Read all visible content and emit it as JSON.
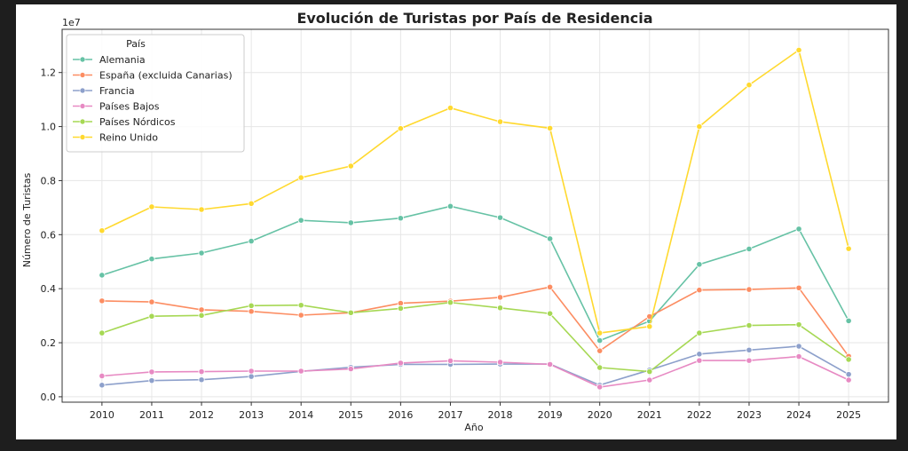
{
  "chart_data": {
    "type": "line",
    "title": "Evolución de Turistas por País de Residencia",
    "xlabel": "Año",
    "ylabel": "Número de Turistas",
    "y_offset_label": "1e7",
    "ylim": [
      -200000,
      13600000
    ],
    "yticks": [
      0,
      2000000,
      4000000,
      6000000,
      8000000,
      10000000,
      12000000
    ],
    "ytick_labels": [
      "0.0",
      "0.2",
      "0.4",
      "0.6",
      "0.8",
      "1.0",
      "1.2"
    ],
    "x": [
      2010,
      2011,
      2012,
      2013,
      2014,
      2015,
      2016,
      2017,
      2018,
      2019,
      2020,
      2021,
      2022,
      2023,
      2024,
      2025
    ],
    "xlim": [
      2009.2,
      2025.8
    ],
    "grid": true,
    "legend": {
      "title": "País",
      "placement": "top-left"
    },
    "series": [
      {
        "name": "Alemania",
        "color": "#66c2a5",
        "values": [
          4500000,
          5100000,
          5320000,
          5760000,
          6530000,
          6440000,
          6610000,
          7050000,
          6630000,
          5850000,
          2080000,
          2800000,
          4900000,
          5470000,
          6210000,
          2810000
        ]
      },
      {
        "name": "España (excluida Canarias)",
        "color": "#fc8d62",
        "values": [
          3550000,
          3510000,
          3220000,
          3160000,
          3020000,
          3110000,
          3460000,
          3540000,
          3680000,
          4060000,
          1700000,
          2970000,
          3950000,
          3970000,
          4030000,
          1500000
        ]
      },
      {
        "name": "Francia",
        "color": "#8da0cb",
        "values": [
          430000,
          600000,
          630000,
          750000,
          940000,
          1090000,
          1200000,
          1200000,
          1210000,
          1210000,
          430000,
          990000,
          1580000,
          1730000,
          1870000,
          830000
        ]
      },
      {
        "name": "Países Bajos",
        "color": "#e78ac3",
        "values": [
          770000,
          920000,
          930000,
          950000,
          950000,
          1030000,
          1250000,
          1330000,
          1280000,
          1200000,
          360000,
          620000,
          1340000,
          1340000,
          1490000,
          620000
        ]
      },
      {
        "name": "Países Nórdicos",
        "color": "#a6d854",
        "values": [
          2360000,
          2980000,
          3010000,
          3370000,
          3390000,
          3110000,
          3270000,
          3490000,
          3290000,
          3080000,
          1080000,
          930000,
          2360000,
          2640000,
          2670000,
          1380000
        ]
      },
      {
        "name": "Reino Unido",
        "color": "#ffd92f",
        "values": [
          6150000,
          7030000,
          6930000,
          7150000,
          8110000,
          8540000,
          9930000,
          10690000,
          10180000,
          9940000,
          2360000,
          2600000,
          10000000,
          11540000,
          12830000,
          5480000
        ]
      }
    ]
  }
}
